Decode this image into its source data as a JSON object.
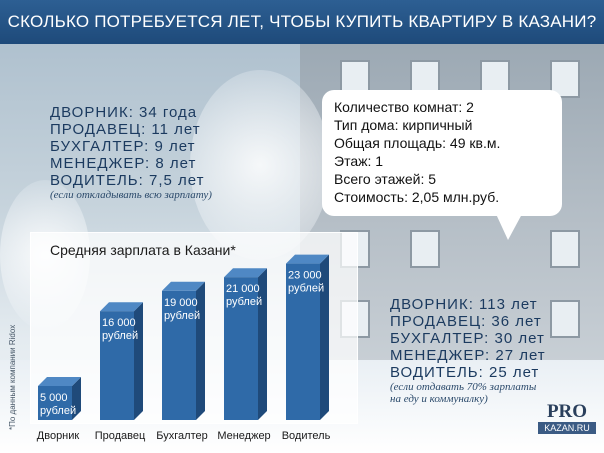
{
  "header": {
    "title": "СКОЛЬКО ПОТРЕБУЕТСЯ ЛЕТ, ЧТОБЫ КУПИТЬ КВАРТИРУ В КАЗАНИ?"
  },
  "years_all_salary": {
    "rows": [
      "ДВОРНИК:  34 года",
      "ПРОДАВЕЦ: 11 лет",
      "БУХГАЛТЕР: 9 лет",
      "МЕНЕДЖЕР: 8 лет",
      "ВОДИТЕЛЬ: 7,5 лет"
    ],
    "note": "(если откладывать всю зарплату)"
  },
  "apartment": {
    "lines": [
      "Количество комнат: 2",
      "Тип дома: кирпичный",
      "Общая площадь: 49 кв.м.",
      "Этаж: 1",
      "Всего этажей: 5",
      "Стоимость: 2,05 млн.руб."
    ]
  },
  "years_70_percent": {
    "rows": [
      "ДВОРНИК:  113 лет",
      "ПРОДАВЕЦ: 36 лет",
      "БУХГАЛТЕР: 30 лет",
      "МЕНЕДЖЕР: 27 лет",
      "ВОДИТЕЛЬ: 25 лет"
    ],
    "note_lines": [
      "(если отдавать 70% зарплаты",
      "на еду и коммуналку)"
    ]
  },
  "logo": {
    "top": "PRO",
    "bottom": "KAZAN.RU"
  },
  "colors": {
    "title_bg": "#1e4a7a",
    "bar_front": "#2f6aa8",
    "bar_side": "#1f4a7a",
    "bar_top": "#4f88c4"
  },
  "chart_data": {
    "type": "bar",
    "title": "Средняя зарплата в Казани*",
    "footnote": "*По данным компании Ridox",
    "categories": [
      "Дворник",
      "Продавец",
      "Бухгалтер",
      "Менеджер",
      "Водитель"
    ],
    "values": [
      5000,
      16000,
      19000,
      21000,
      23000
    ],
    "value_labels": [
      [
        "5 000",
        "рублей"
      ],
      [
        "16 000",
        "рублей"
      ],
      [
        "19 000",
        "рублей"
      ],
      [
        "21 000",
        "рублей"
      ],
      [
        "23 000",
        "рублей"
      ]
    ],
    "ylim": [
      0,
      25000
    ],
    "xlabel": "",
    "ylabel": "",
    "grid": false
  }
}
